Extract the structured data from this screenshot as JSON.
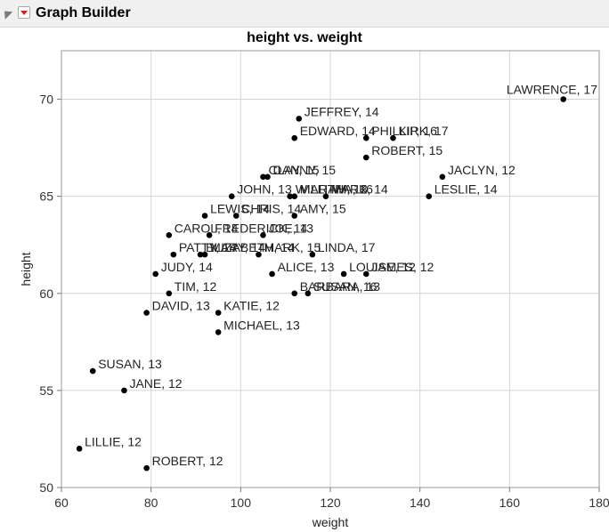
{
  "window": {
    "title": "Graph Builder"
  },
  "icons": {
    "collapse": "disclosure-triangle-icon",
    "menu": "red-triangle-menu-icon"
  },
  "colors": {
    "point": "#000000",
    "grid": "#d4d4d4",
    "frame": "#999999"
  },
  "chart_data": {
    "type": "scatter",
    "title": "height vs. weight",
    "xlabel": "weight",
    "ylabel": "height",
    "xlim": [
      60,
      180
    ],
    "ylim": [
      50,
      72.5
    ],
    "xticks": [
      60,
      80,
      100,
      120,
      140,
      160,
      180
    ],
    "yticks": [
      50,
      55,
      60,
      65,
      70
    ],
    "grid": true,
    "points": [
      {
        "x": 172,
        "y": 70,
        "label": "LAWRENCE, 17"
      },
      {
        "x": 113,
        "y": 69,
        "label": "JEFFREY, 14"
      },
      {
        "x": 112,
        "y": 68,
        "label": "EDWARD, 14"
      },
      {
        "x": 128,
        "y": 68,
        "label": "PHILLIP, 16"
      },
      {
        "x": 134,
        "y": 68,
        "label": "KIRK, 17"
      },
      {
        "x": 128,
        "y": 67,
        "label": "ROBERT, 15"
      },
      {
        "x": 105,
        "y": 66,
        "label": "CLAY, 15"
      },
      {
        "x": 106,
        "y": 66,
        "label": "DANNY, 15"
      },
      {
        "x": 145,
        "y": 66,
        "label": "JACLYN, 12"
      },
      {
        "x": 98,
        "y": 65,
        "label": "JOHN, 13"
      },
      {
        "x": 111,
        "y": 65,
        "label": "WILLIAM, 13"
      },
      {
        "x": 112,
        "y": 65,
        "label": "MARTHA, 16"
      },
      {
        "x": 119,
        "y": 65,
        "label": "MARK, 14"
      },
      {
        "x": 142,
        "y": 65,
        "label": "LESLIE, 14"
      },
      {
        "x": 92,
        "y": 64,
        "label": "LEWIS, 14"
      },
      {
        "x": 99,
        "y": 64,
        "label": "CHRIS, 14"
      },
      {
        "x": 112,
        "y": 64,
        "label": "AMY, 15"
      },
      {
        "x": 84,
        "y": 63,
        "label": "CAROL, 14"
      },
      {
        "x": 93,
        "y": 63,
        "label": "FREDERICK, 14"
      },
      {
        "x": 105,
        "y": 63,
        "label": "JOE, 13"
      },
      {
        "x": 85,
        "y": 62,
        "label": "PATTY, 14"
      },
      {
        "x": 91,
        "y": 62,
        "label": "ELIZABETH, 14"
      },
      {
        "x": 92,
        "y": 62,
        "label": "MARY, 14"
      },
      {
        "x": 104,
        "y": 62,
        "label": "MARK, 15"
      },
      {
        "x": 116,
        "y": 62,
        "label": "LINDA, 17"
      },
      {
        "x": 81,
        "y": 61,
        "label": "JUDY, 14"
      },
      {
        "x": 107,
        "y": 61,
        "label": "ALICE, 13"
      },
      {
        "x": 123,
        "y": 61,
        "label": "LOUISE, 12"
      },
      {
        "x": 128,
        "y": 61,
        "label": "JAMES, 12"
      },
      {
        "x": 84,
        "y": 60,
        "label": "TIM, 12"
      },
      {
        "x": 112,
        "y": 60,
        "label": "BARBARA, 13"
      },
      {
        "x": 115,
        "y": 60,
        "label": "SUSAN, 16"
      },
      {
        "x": 79,
        "y": 59,
        "label": "DAVID, 13"
      },
      {
        "x": 95,
        "y": 59,
        "label": "KATIE, 12"
      },
      {
        "x": 95,
        "y": 58,
        "label": "MICHAEL, 13"
      },
      {
        "x": 67,
        "y": 56,
        "label": "SUSAN, 13"
      },
      {
        "x": 74,
        "y": 55,
        "label": "JANE, 12"
      },
      {
        "x": 64,
        "y": 52,
        "label": "LILLIE, 12"
      },
      {
        "x": 79,
        "y": 51,
        "label": "ROBERT, 12"
      }
    ]
  }
}
